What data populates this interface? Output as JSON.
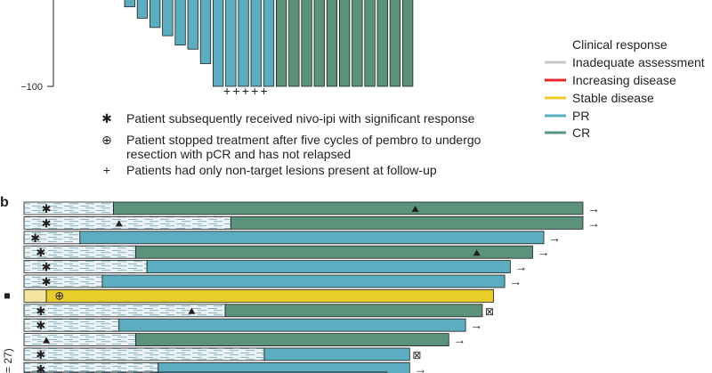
{
  "colors": {
    "inadequate": "#c8c8c8",
    "increasing": "#e8262e",
    "stable": "#e7cc2a",
    "pr": "#5aaec0",
    "cr": "#5b927b",
    "hatch": "#eaf2f4"
  },
  "waterfall": {
    "axis_tick_label": "−100",
    "plus_markers": "+++++",
    "legend": {
      "title": "Clinical response",
      "items": [
        {
          "key": "inadequate",
          "label": "Inadequate assessment"
        },
        {
          "key": "increasing",
          "label": "Increasing disease"
        },
        {
          "key": "stable",
          "label": "Stable disease"
        },
        {
          "key": "pr",
          "label": "PR"
        },
        {
          "key": "cr",
          "label": "CR"
        }
      ]
    },
    "notes": [
      {
        "symbol": "✱",
        "text": "Patient subsequently received nivo-ipi with significant response"
      },
      {
        "symbol": "⊕",
        "text": "Patient stopped treatment after five cycles of pembro to undergo",
        "text2": "resection with pCR and has not relapsed"
      },
      {
        "symbol": "+",
        "text": "Patients had only non-target lesions present at follow-up"
      }
    ]
  },
  "swimmer": {
    "panel_label": "b",
    "y_label_fragment": "= 27)",
    "arrow_glyph": "→",
    "stopped_glyph": "⊠"
  },
  "chart_data": [
    {
      "type": "bar",
      "panel": "a (waterfall, partially visible)",
      "ylabel": "",
      "yticks": [
        -100
      ],
      "bars": [
        {
          "response": "PR",
          "value": -23
        },
        {
          "response": "PR",
          "value": -34
        },
        {
          "response": "PR",
          "value": -43
        },
        {
          "response": "PR",
          "value": -51
        },
        {
          "response": "PR",
          "value": -60
        },
        {
          "response": "PR",
          "value": -64
        },
        {
          "response": "PR",
          "value": -78
        },
        {
          "response": "PR",
          "value": -100,
          "non_target_only": true
        },
        {
          "response": "PR",
          "value": -100,
          "non_target_only": true
        },
        {
          "response": "PR",
          "value": -100,
          "non_target_only": true
        },
        {
          "response": "PR",
          "value": -100,
          "non_target_only": true
        },
        {
          "response": "PR",
          "value": -100,
          "non_target_only": true
        },
        {
          "response": "CR",
          "value": -100
        },
        {
          "response": "CR",
          "value": -100
        },
        {
          "response": "CR",
          "value": -100
        },
        {
          "response": "CR",
          "value": -100
        },
        {
          "response": "CR",
          "value": -100
        },
        {
          "response": "CR",
          "value": -100
        },
        {
          "response": "CR",
          "value": -100
        },
        {
          "response": "CR",
          "value": -100
        },
        {
          "response": "CR",
          "value": -100
        },
        {
          "response": "CR",
          "value": -100
        },
        {
          "response": "CR",
          "value": -100
        }
      ]
    },
    {
      "type": "bar",
      "orientation": "horizontal",
      "panel": "b (swimmer plot, partially visible)",
      "ylabel": "= 27)",
      "xunit": "relative time",
      "rows": [
        {
          "treat_end": 16,
          "total": 100,
          "response": "CR",
          "pr_start": 16,
          "cr_start": 16,
          "cross": true,
          "first_response": 4,
          "triangle": 70,
          "arrow": true
        },
        {
          "treat_end": 37,
          "total": 100,
          "response": "CR",
          "pr_start": 37,
          "cr_start": 37,
          "cross": true,
          "first_response": 4,
          "triangle": 17,
          "arrow": true
        },
        {
          "treat_end": 10,
          "total": 93,
          "response": "PR",
          "pr_start": 10,
          "cr_start": null,
          "cross": true,
          "first_response": 2,
          "arrow": true
        },
        {
          "treat_end": 20,
          "total": 91,
          "response": "CR",
          "pr_start": 20,
          "cr_start": 20,
          "cross": true,
          "first_response": 3,
          "triangle": 81,
          "arrow": true
        },
        {
          "treat_end": 22,
          "total": 87,
          "response": "PR",
          "pr_start": 22,
          "cr_start": null,
          "cross": true,
          "first_response": 4,
          "arrow": true
        },
        {
          "treat_end": 14,
          "total": 86,
          "response": "PR",
          "pr_start": 14,
          "cr_start": null,
          "cross": true,
          "first_response": 4,
          "arrow": true
        },
        {
          "treat_end": 4,
          "total": 84,
          "response": "Stable",
          "pr_start": null,
          "cr_start": null,
          "pembro_stop": true,
          "first_response": 6,
          "marker_left": true
        },
        {
          "treat_end": 36,
          "total": 82,
          "response": "CR",
          "pr_start": 36,
          "cr_start": 36,
          "cross": true,
          "first_response": 3,
          "triangle": 30,
          "stopped": true
        },
        {
          "treat_end": 17,
          "total": 79,
          "response": "PR",
          "pr_start": 17,
          "cr_start": null,
          "cross": true,
          "first_response": 3,
          "arrow": true
        },
        {
          "treat_end": 20,
          "total": 76,
          "response": "CR",
          "pr_start": 20,
          "cr_start": 20,
          "cross": false,
          "first_response": null,
          "triangle": 4,
          "arrow": true
        },
        {
          "treat_end": 43,
          "total": 69,
          "response": "PR",
          "pr_start": 43,
          "cr_start": null,
          "cross": true,
          "first_response": 3,
          "stopped": true
        },
        {
          "treat_end": 24,
          "total": 69,
          "response": "PR",
          "pr_start": 24,
          "cr_start": null,
          "cross": true,
          "first_response": 3,
          "arrow": true
        }
      ]
    }
  ]
}
